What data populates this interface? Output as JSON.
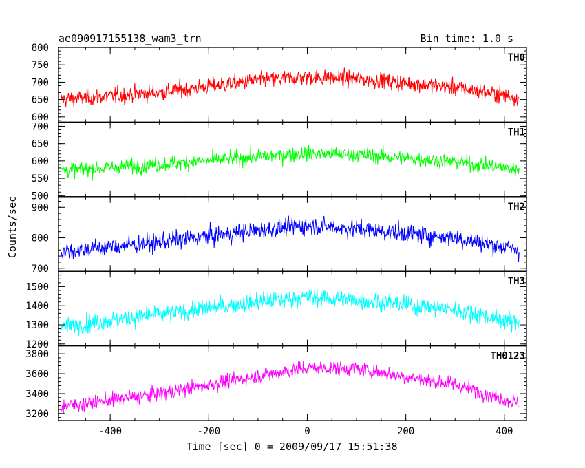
{
  "chart_data": {
    "type": "line",
    "title": "ae090917155138_wam3_trn",
    "subtitle": "Bin time: 1.0 s",
    "xlabel": "Time [sec] 0 = 2009/09/17 15:51:38",
    "ylabel": "Counts/sec",
    "xlim": [
      -505,
      445
    ],
    "x_ticks": [
      -400,
      -200,
      0,
      200,
      400
    ],
    "x_data_range": [
      -500,
      430
    ],
    "bin_time_s": 1.0,
    "panels": [
      {
        "name": "TH0",
        "color": "#ff0000",
        "ylim": [
          585,
          800
        ],
        "y_ticks": [
          600,
          650,
          700,
          750,
          800
        ],
        "trend": {
          "x": [
            -500,
            -300,
            -100,
            0,
            100,
            300,
            430
          ],
          "y": [
            650,
            670,
            705,
            715,
            710,
            685,
            655
          ]
        },
        "scatter": 30
      },
      {
        "name": "TH1",
        "color": "#00ff00",
        "ylim": [
          497,
          712
        ],
        "y_ticks": [
          500,
          550,
          600,
          650,
          700
        ],
        "trend": {
          "x": [
            -500,
            -300,
            -100,
            0,
            100,
            300,
            430
          ],
          "y": [
            572,
            590,
            612,
            622,
            618,
            598,
            575
          ]
        },
        "scatter": 28
      },
      {
        "name": "TH2",
        "color": "#0000ff",
        "ylim": [
          690,
          935
        ],
        "y_ticks": [
          700,
          800,
          900
        ],
        "trend": {
          "x": [
            -500,
            -300,
            -100,
            0,
            100,
            300,
            430
          ],
          "y": [
            755,
            785,
            825,
            840,
            830,
            800,
            760
          ]
        },
        "scatter": 38
      },
      {
        "name": "TH3",
        "color": "#00ffff",
        "ylim": [
          1190,
          1580
        ],
        "y_ticks": [
          1200,
          1300,
          1400,
          1500
        ],
        "trend": {
          "x": [
            -500,
            -300,
            -100,
            0,
            100,
            300,
            430
          ],
          "y": [
            1290,
            1355,
            1420,
            1445,
            1430,
            1380,
            1310
          ]
        },
        "scatter": 60
      },
      {
        "name": "TH0123",
        "color": "#ff00ff",
        "ylim": [
          3130,
          3880
        ],
        "y_ticks": [
          3200,
          3400,
          3600,
          3800
        ],
        "trend": {
          "x": [
            -500,
            -300,
            -100,
            0,
            100,
            300,
            430
          ],
          "y": [
            3270,
            3400,
            3580,
            3660,
            3650,
            3490,
            3300
          ]
        },
        "scatter": 95
      }
    ]
  }
}
